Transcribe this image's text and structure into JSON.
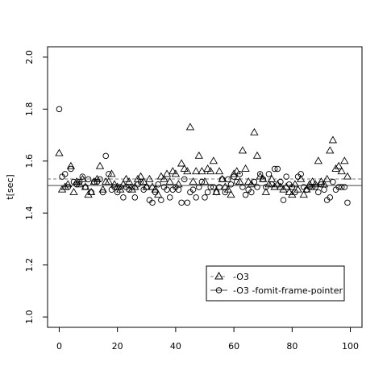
{
  "chart_data": {
    "type": "scatter",
    "title": "",
    "xlabel": "",
    "ylabel": "t[sec]",
    "xlim": [
      -4,
      104
    ],
    "ylim": [
      0.96,
      2.04
    ],
    "xticks": [
      0,
      20,
      40,
      60,
      80,
      100
    ],
    "yticks": [
      1.0,
      1.2,
      1.4,
      1.6,
      1.8,
      2.0
    ],
    "xtick_labels": [
      "0",
      "20",
      "40",
      "60",
      "80",
      "100"
    ],
    "ytick_labels": [
      "1.0",
      "1.2",
      "1.4",
      "1.6",
      "1.8",
      "2.0"
    ],
    "grid": false,
    "legend_position": "bottom-right",
    "series": [
      {
        "name": "-O3",
        "marker": "triangle",
        "line_style": "dashed",
        "line_color": "#777777",
        "mean": 1.531,
        "x": [
          0,
          1,
          2,
          3,
          4,
          5,
          6,
          7,
          8,
          9,
          10,
          11,
          12,
          13,
          14,
          15,
          16,
          17,
          18,
          19,
          20,
          21,
          22,
          23,
          24,
          25,
          26,
          27,
          28,
          29,
          30,
          31,
          32,
          33,
          34,
          35,
          36,
          37,
          38,
          39,
          40,
          41,
          42,
          43,
          44,
          45,
          46,
          47,
          48,
          49,
          50,
          51,
          52,
          53,
          54,
          55,
          56,
          57,
          58,
          59,
          60,
          61,
          62,
          63,
          64,
          65,
          66,
          67,
          68,
          69,
          70,
          71,
          72,
          73,
          74,
          75,
          76,
          77,
          78,
          79,
          80,
          81,
          82,
          83,
          84,
          85,
          86,
          87,
          88,
          89,
          90,
          91,
          92,
          93,
          94,
          95,
          96,
          97,
          98,
          99
        ],
        "values": [
          1.63,
          1.49,
          1.5,
          1.51,
          1.58,
          1.48,
          1.52,
          1.51,
          1.53,
          1.5,
          1.47,
          1.48,
          1.52,
          1.53,
          1.58,
          1.49,
          1.52,
          1.52,
          1.55,
          1.51,
          1.5,
          1.49,
          1.51,
          1.53,
          1.52,
          1.49,
          1.5,
          1.53,
          1.54,
          1.52,
          1.5,
          1.53,
          1.5,
          1.49,
          1.47,
          1.54,
          1.53,
          1.55,
          1.52,
          1.56,
          1.55,
          1.51,
          1.59,
          1.57,
          1.56,
          1.73,
          1.52,
          1.56,
          1.62,
          1.56,
          1.52,
          1.57,
          1.56,
          1.6,
          1.48,
          1.56,
          1.53,
          1.5,
          1.49,
          1.47,
          1.55,
          1.56,
          1.52,
          1.64,
          1.57,
          1.52,
          1.51,
          1.71,
          1.62,
          1.54,
          1.53,
          1.48,
          1.51,
          1.53,
          1.5,
          1.51,
          1.5,
          1.49,
          1.5,
          1.48,
          1.47,
          1.51,
          1.49,
          1.53,
          1.47,
          1.49,
          1.51,
          1.52,
          1.51,
          1.6,
          1.52,
          1.51,
          1.53,
          1.64,
          1.68,
          1.57,
          1.58,
          1.56,
          1.6,
          1.54
        ]
      },
      {
        "name": "-O3 -fomit-frame-pointer",
        "marker": "circle",
        "line_style": "solid",
        "line_color": "#444444",
        "mean": 1.506,
        "x": [
          0,
          1,
          2,
          3,
          4,
          5,
          6,
          7,
          8,
          9,
          10,
          11,
          12,
          13,
          14,
          15,
          16,
          17,
          18,
          19,
          20,
          21,
          22,
          23,
          24,
          25,
          26,
          27,
          28,
          29,
          30,
          31,
          32,
          33,
          34,
          35,
          36,
          37,
          38,
          39,
          40,
          41,
          42,
          43,
          44,
          45,
          46,
          47,
          48,
          49,
          50,
          51,
          52,
          53,
          54,
          55,
          56,
          57,
          58,
          59,
          60,
          61,
          62,
          63,
          64,
          65,
          66,
          67,
          68,
          69,
          70,
          71,
          72,
          73,
          74,
          75,
          76,
          77,
          78,
          79,
          80,
          81,
          82,
          83,
          84,
          85,
          86,
          87,
          88,
          89,
          90,
          91,
          92,
          93,
          94,
          95,
          96,
          97,
          98,
          99
        ],
        "values": [
          1.8,
          1.54,
          1.55,
          1.5,
          1.57,
          1.52,
          1.51,
          1.52,
          1.54,
          1.5,
          1.53,
          1.48,
          1.52,
          1.52,
          1.53,
          1.48,
          1.62,
          1.55,
          1.49,
          1.5,
          1.48,
          1.5,
          1.46,
          1.5,
          1.49,
          1.5,
          1.46,
          1.51,
          1.52,
          1.49,
          1.5,
          1.45,
          1.44,
          1.48,
          1.51,
          1.45,
          1.5,
          1.49,
          1.46,
          1.49,
          1.5,
          1.49,
          1.44,
          1.53,
          1.44,
          1.48,
          1.49,
          1.46,
          1.5,
          1.52,
          1.46,
          1.48,
          1.5,
          1.5,
          1.48,
          1.5,
          1.53,
          1.48,
          1.53,
          1.51,
          1.54,
          1.52,
          1.55,
          1.5,
          1.47,
          1.49,
          1.48,
          1.52,
          1.5,
          1.55,
          1.53,
          1.5,
          1.55,
          1.51,
          1.57,
          1.57,
          1.52,
          1.45,
          1.54,
          1.51,
          1.5,
          1.48,
          1.54,
          1.55,
          1.5,
          1.49,
          1.5,
          1.5,
          1.5,
          1.48,
          1.51,
          1.49,
          1.45,
          1.46,
          1.52,
          1.49,
          1.5,
          1.5,
          1.5,
          1.44
        ]
      }
    ]
  }
}
